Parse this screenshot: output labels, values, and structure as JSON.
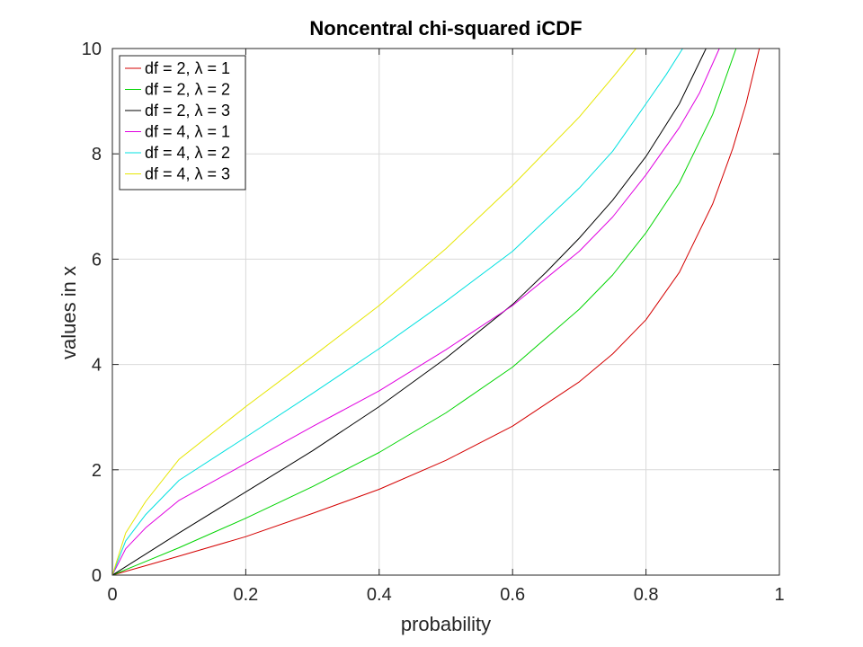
{
  "chart_data": {
    "type": "line",
    "title": "Noncentral chi-squared iCDF",
    "xlabel": "probability",
    "ylabel": "values in x",
    "xlim": [
      0,
      1
    ],
    "ylim": [
      0,
      10
    ],
    "xticks": [
      0,
      0.2,
      0.4,
      0.6,
      0.8,
      1
    ],
    "xtick_labels": [
      "0",
      "0.2",
      "0.4",
      "0.6",
      "0.8",
      "1"
    ],
    "yticks": [
      0,
      2,
      4,
      6,
      8,
      10
    ],
    "ytick_labels": [
      "0",
      "2",
      "4",
      "6",
      "8",
      "10"
    ],
    "grid": true,
    "legend_position": "top-left",
    "series": [
      {
        "name": "df = 2, λ = 1",
        "color": "#d40000",
        "x": [
          0,
          0.05,
          0.1,
          0.2,
          0.3,
          0.4,
          0.5,
          0.6,
          0.7,
          0.75,
          0.8,
          0.85,
          0.9,
          0.93,
          0.95,
          0.97
        ],
        "y": [
          0,
          0.18,
          0.36,
          0.73,
          1.17,
          1.63,
          2.18,
          2.83,
          3.67,
          4.2,
          4.85,
          5.75,
          7.05,
          8.1,
          8.95,
          10.0
        ]
      },
      {
        "name": "df = 2, λ = 2",
        "color": "#00d400",
        "x": [
          0,
          0.05,
          0.1,
          0.2,
          0.3,
          0.4,
          0.5,
          0.6,
          0.7,
          0.75,
          0.8,
          0.85,
          0.9,
          0.935
        ],
        "y": [
          0,
          0.26,
          0.52,
          1.08,
          1.68,
          2.33,
          3.08,
          3.95,
          5.05,
          5.7,
          6.5,
          7.45,
          8.75,
          10.0
        ]
      },
      {
        "name": "df = 2, λ = 3",
        "color": "#000000",
        "x": [
          0,
          0.05,
          0.1,
          0.2,
          0.3,
          0.4,
          0.5,
          0.6,
          0.65,
          0.7,
          0.75,
          0.8,
          0.85,
          0.89
        ],
        "y": [
          0,
          0.4,
          0.8,
          1.58,
          2.36,
          3.2,
          4.12,
          5.14,
          5.75,
          6.4,
          7.12,
          7.95,
          8.95,
          10.0
        ]
      },
      {
        "name": "df = 4, λ = 1",
        "color": "#e000e0",
        "x": [
          0,
          0.02,
          0.05,
          0.1,
          0.2,
          0.3,
          0.4,
          0.5,
          0.6,
          0.7,
          0.75,
          0.8,
          0.85,
          0.88,
          0.91
        ],
        "y": [
          0,
          0.5,
          0.9,
          1.42,
          2.12,
          2.82,
          3.5,
          4.28,
          5.12,
          6.15,
          6.8,
          7.6,
          8.5,
          9.15,
          10.0
        ]
      },
      {
        "name": "df = 4, λ = 2",
        "color": "#00e0e0",
        "x": [
          0,
          0.02,
          0.05,
          0.1,
          0.2,
          0.3,
          0.4,
          0.5,
          0.6,
          0.7,
          0.75,
          0.8,
          0.83,
          0.855
        ],
        "y": [
          0,
          0.65,
          1.15,
          1.8,
          2.62,
          3.45,
          4.3,
          5.2,
          6.15,
          7.35,
          8.05,
          8.95,
          9.5,
          10.0
        ]
      },
      {
        "name": "df = 4, λ = 3",
        "color": "#e6e600",
        "x": [
          0,
          0.02,
          0.05,
          0.1,
          0.2,
          0.3,
          0.4,
          0.5,
          0.6,
          0.7,
          0.75,
          0.785
        ],
        "y": [
          0,
          0.8,
          1.4,
          2.2,
          3.2,
          4.15,
          5.12,
          6.2,
          7.4,
          8.7,
          9.45,
          10.0
        ]
      }
    ]
  }
}
